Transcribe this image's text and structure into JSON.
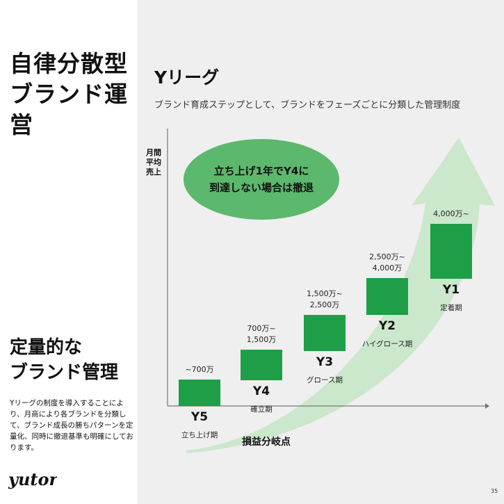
{
  "left": {
    "title1": "自律分散型\nブランド運営",
    "title2": "定量的な\nブランド管理",
    "description": "Yリーグの制度を導入することにより、月商により各ブランドを分類して、ブランド成長の勝ちパターンを定量化、同時に撤退基準も明確にしております。",
    "logo_text": "yutori"
  },
  "slide": {
    "title": "Yリーグ",
    "subtitle": "ブランド育成ステップとして、ブランドをフェーズごとに分類した管理制度",
    "ylabel": "月間\n平均\n売上",
    "callout": "立ち上げ1年でY4に\n到達しない場合は撤退",
    "breakeven": "損益分岐点",
    "page_number": "35"
  },
  "chart_data": {
    "type": "bar",
    "categories": [
      "Y5",
      "Y4",
      "Y3",
      "Y2",
      "Y1"
    ],
    "ranges": [
      "~700万",
      "700万~\n1,500万",
      "1,500万~\n2,500万",
      "2,500万~\n4,000万",
      "4,000万~"
    ],
    "phases": [
      "立ち上げ期",
      "確立期",
      "グロース期",
      "ハイグロース期",
      "定着期"
    ],
    "ylabel": "月間\n平均\n売上",
    "xlabel": "",
    "bar_color": "#1e9e46",
    "arrow_color": "#c8e6c9",
    "callout_color": "#5cb86c"
  }
}
